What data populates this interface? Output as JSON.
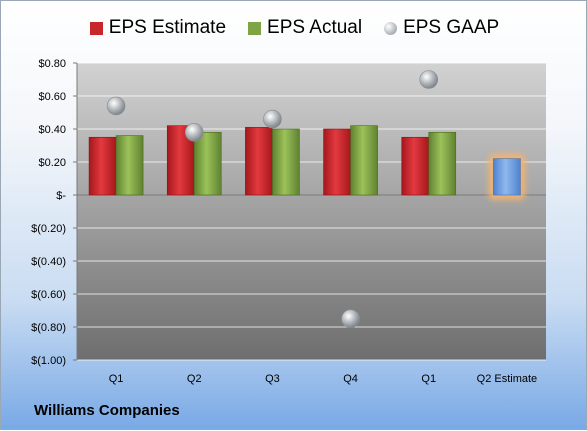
{
  "company": "Williams Companies",
  "colors": {
    "estimate": "#c8262b",
    "actual": "#7ea443",
    "gaap": "#b5b9bd",
    "forecast": "#6d9de0",
    "forecast_glow": "#f5b46e"
  },
  "chart_data": {
    "type": "bar",
    "title": "",
    "xlabel": "",
    "ylabel": "",
    "ylim": [
      -1.0,
      0.8
    ],
    "grid": true,
    "legend_position": "top",
    "categories": [
      "Q1",
      "Q2",
      "Q3",
      "Q4",
      "Q1",
      "Q2 Estimate"
    ],
    "y_ticks": [
      0.8,
      0.6,
      0.4,
      0.2,
      0,
      -0.2,
      -0.4,
      -0.6,
      -0.8,
      -1.0
    ],
    "y_tick_labels": [
      "$0.80",
      "$0.60",
      "$0.40",
      "$0.20",
      "$-",
      "$(0.20)",
      "$(0.40)",
      "$(0.60)",
      "$(0.80)",
      "$(1.00)"
    ],
    "series": [
      {
        "name": "EPS Estimate",
        "kind": "bar",
        "values": [
          0.35,
          0.42,
          0.41,
          0.4,
          0.35,
          0.22
        ]
      },
      {
        "name": "EPS Actual",
        "kind": "bar",
        "values": [
          0.36,
          0.38,
          0.4,
          0.42,
          0.38,
          null
        ]
      },
      {
        "name": "EPS GAAP",
        "kind": "scatter",
        "values": [
          0.54,
          0.38,
          0.46,
          -0.75,
          0.7,
          null
        ]
      }
    ]
  }
}
